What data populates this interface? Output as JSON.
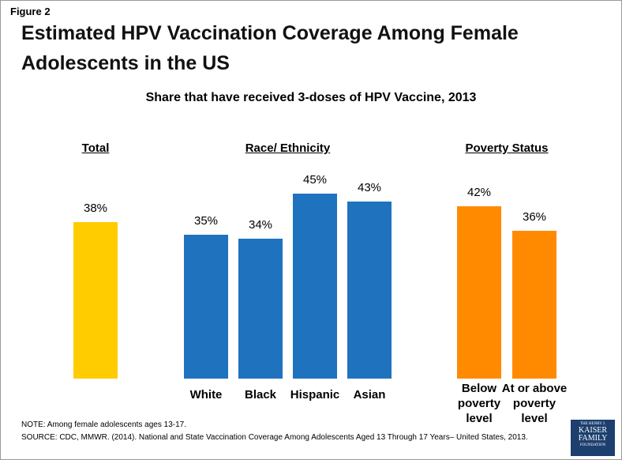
{
  "chart_data": {
    "type": "bar",
    "figure_label": "Figure 2",
    "title": "Estimated HPV Vaccination Coverage Among Female Adolescents in the US",
    "subtitle": "Share that have received 3-doses of HPV Vaccine, 2013",
    "ylim": [
      0,
      50
    ],
    "groups": [
      {
        "name": "Total",
        "color": "#FFCC00",
        "categories": [
          null
        ],
        "values": [
          38
        ],
        "value_labels": [
          "38%"
        ]
      },
      {
        "name": "Race/ Ethnicity",
        "color": "#1F72BE",
        "categories": [
          "White",
          "Black",
          "Hispanic",
          "Asian"
        ],
        "values": [
          35,
          34,
          45,
          43
        ],
        "value_labels": [
          "35%",
          "34%",
          "45%",
          "43%"
        ]
      },
      {
        "name": "Poverty Status",
        "color": "#FF8A00",
        "categories": [
          "Below poverty level",
          "At or above poverty level"
        ],
        "values": [
          42,
          36
        ],
        "value_labels": [
          "42%",
          "36%"
        ]
      }
    ],
    "note": "NOTE:  Among female adolescents ages 13-17.",
    "source": "SOURCE:  CDC, MMWR. (2014).  National and State Vaccination Coverage Among Adolescents Aged 13 Through 17 Years– United States, 2013.",
    "logo": [
      "THE HENRY J.",
      "KAISER",
      "FAMILY",
      "FOUNDATION"
    ]
  }
}
